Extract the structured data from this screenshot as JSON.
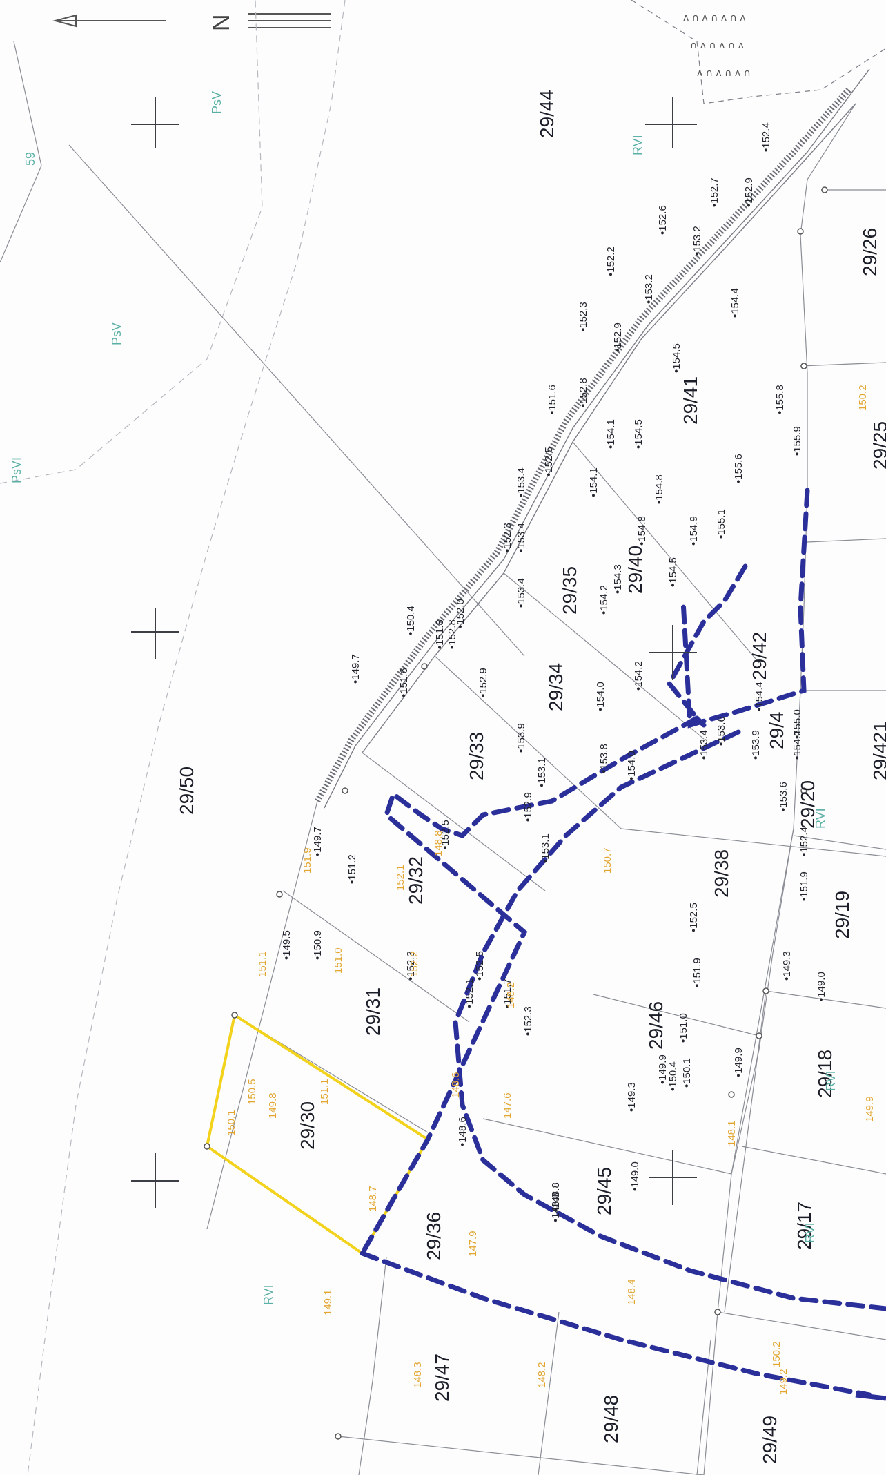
{
  "parcels": [
    "29/44",
    "29/50",
    "29/26",
    "29/25",
    "29/41",
    "29/40",
    "29/35",
    "29/34",
    "29/33",
    "29/32",
    "29/31",
    "29/30",
    "29/36",
    "29/47",
    "29/48",
    "29/49",
    "29/45",
    "29/46",
    "29/38",
    "29/42",
    "29/4",
    "29/20",
    "29/19",
    "29/18",
    "29/17",
    "29/421"
  ],
  "land_classes": [
    "PsV",
    "PsV",
    "PsVI",
    "RVI",
    "RVI",
    "RVI",
    "RVI",
    "RVI",
    "59"
  ],
  "elevations": [
    "152.4",
    "152.7",
    "152.9",
    "152.6",
    "153.2",
    "152.2",
    "153.2",
    "152.3",
    "152.9",
    "154.4",
    "154.5",
    "152.8",
    "151.6",
    "154.1",
    "154.5",
    "152.5",
    "153.4",
    "154.1",
    "154.8",
    "153.4",
    "152.3",
    "154.3",
    "155.8",
    "155.9",
    "155.6",
    "155.1",
    "154.9",
    "154.8",
    "154.5",
    "153.4",
    "154.2",
    "152.0",
    "150.4",
    "151.8",
    "152.8",
    "149.7",
    "151.6",
    "152.9",
    "153.9",
    "154.0",
    "154.2",
    "153.8",
    "154.0",
    "153.1",
    "152.9",
    "153.4",
    "153.6",
    "154.4",
    "153.9",
    "155.0",
    "154.2",
    "153.6",
    "152.4",
    "151.9",
    "149.7",
    "151.2",
    "152.5",
    "150.9",
    "149.5",
    "152.3",
    "152.5",
    "152.1",
    "151.7",
    "152.3",
    "153.1",
    "152.5",
    "151.9",
    "151.0",
    "150.1",
    "149.9",
    "149.3",
    "149.0",
    "148.8",
    "150.4",
    "148.8",
    "148.6",
    "149.9",
    "149.3",
    "149.0"
  ],
  "elevations_yellow": [
    "151.9",
    "152.1",
    "151.1",
    "151.0",
    "152.2",
    "150.7",
    "150.5",
    "151.1",
    "149.8",
    "150.1",
    "148.7",
    "148.6",
    "148.2",
    "147.6",
    "147.9",
    "148.1",
    "149.1",
    "148.3",
    "148.2",
    "148.4",
    "149.2",
    "150.2",
    "150.2",
    "149.9",
    "148.8"
  ],
  "north_arrow": "N",
  "colors": {
    "boundary": "#2a2f9a",
    "highlight": "#f2d21b",
    "land_class": "#5bb0a6",
    "elevation_yellow": "#e2a630"
  }
}
